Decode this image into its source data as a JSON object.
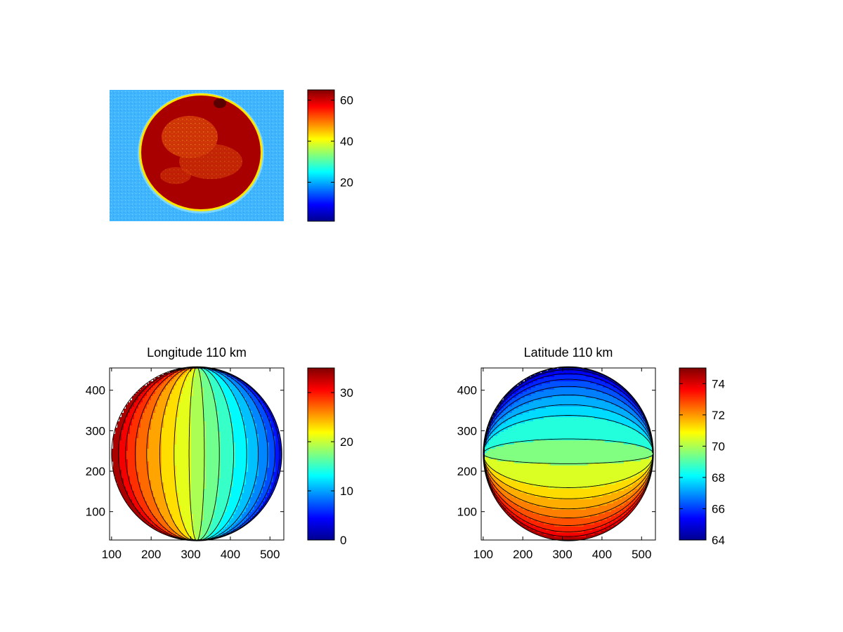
{
  "chart_data": [
    {
      "type": "heatmap",
      "title": "",
      "description_kind": "image",
      "colormap": "jet",
      "colorbar": {
        "range": [
          1,
          65
        ],
        "ticks": [
          20,
          40,
          60
        ]
      },
      "axes_visible": false
    },
    {
      "type": "heatmap",
      "title": "Longitude 110 km",
      "colormap": "jet",
      "x_ticks": [
        100,
        200,
        300,
        400,
        500
      ],
      "y_ticks": [
        100,
        200,
        300,
        400
      ],
      "xlim": [
        95,
        535
      ],
      "ylim": [
        30,
        455
      ],
      "disk_center": [
        315,
        243
      ],
      "contour_field": "longitude",
      "contour_levels": [
        2,
        4,
        6,
        8,
        10,
        12,
        14,
        16,
        18,
        20,
        22,
        24,
        26,
        28,
        30,
        32
      ],
      "colorbar": {
        "range": [
          0,
          35
        ],
        "ticks": [
          0,
          10,
          20,
          30
        ]
      }
    },
    {
      "type": "heatmap",
      "title": "Latitude 110 km",
      "colormap": "jet",
      "x_ticks": [
        100,
        200,
        300,
        400,
        500
      ],
      "y_ticks": [
        100,
        200,
        300,
        400
      ],
      "xlim": [
        95,
        535
      ],
      "ylim": [
        30,
        455
      ],
      "disk_center": [
        315,
        243
      ],
      "contour_field": "latitude",
      "contour_levels": [
        64.5,
        65,
        65.5,
        66,
        66.5,
        67,
        67.5,
        68,
        69,
        70,
        71,
        71.5,
        72,
        72.5,
        73,
        73.5,
        74
      ],
      "colorbar": {
        "range": [
          64,
          75
        ],
        "ticks": [
          64,
          66,
          68,
          70,
          72,
          74
        ]
      }
    }
  ]
}
